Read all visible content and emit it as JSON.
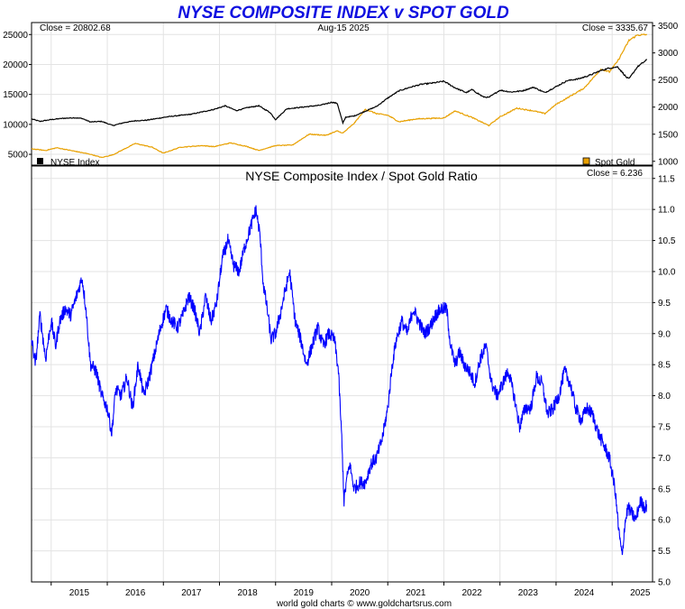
{
  "colors": {
    "title": "#1010e0",
    "nyse": "#000000",
    "gold": "#e8a000",
    "ratio": "#0000ff",
    "grid": "#e3e3e3"
  },
  "header": {
    "title": "NYSE COMPOSITE INDEX v SPOT GOLD"
  },
  "footer": {
    "credit": "world gold charts © www.goldchartsrus.com"
  },
  "chart_data": [
    {
      "type": "line",
      "panel": "top",
      "date_label": "Aug-15  2025",
      "xlim": [
        2014.65,
        2025.72
      ],
      "series": [
        {
          "name": "NYSE Index",
          "axis": "left",
          "close_label": "Close = 20802.68",
          "x": [
            2014.65,
            2014.8,
            2015.0,
            2015.2,
            2015.4,
            2015.55,
            2015.7,
            2015.9,
            2016.1,
            2016.3,
            2016.5,
            2016.7,
            2016.9,
            2017.1,
            2017.3,
            2017.5,
            2017.7,
            2017.9,
            2018.1,
            2018.3,
            2018.5,
            2018.7,
            2018.9,
            2019.0,
            2019.2,
            2019.4,
            2019.6,
            2019.8,
            2020.0,
            2020.1,
            2020.2,
            2020.25,
            2020.4,
            2020.6,
            2020.8,
            2021.0,
            2021.2,
            2021.4,
            2021.6,
            2021.8,
            2022.0,
            2022.2,
            2022.4,
            2022.5,
            2022.7,
            2022.8,
            2023.0,
            2023.2,
            2023.4,
            2023.6,
            2023.8,
            2024.0,
            2024.2,
            2024.4,
            2024.6,
            2024.8,
            2024.95,
            2025.1,
            2025.25,
            2025.3,
            2025.45,
            2025.62
          ],
          "y": [
            10900,
            10500,
            10800,
            11000,
            11100,
            11000,
            10400,
            10500,
            9800,
            10300,
            10600,
            10700,
            11000,
            11300,
            11500,
            11700,
            12100,
            12500,
            13100,
            12300,
            12800,
            13100,
            12000,
            10800,
            12600,
            12800,
            13000,
            13200,
            13700,
            13500,
            10200,
            11200,
            11400,
            12200,
            13000,
            14400,
            15600,
            16200,
            16700,
            16900,
            17200,
            16100,
            15300,
            15800,
            14600,
            14500,
            15700,
            15400,
            15600,
            16200,
            15300,
            16300,
            17300,
            17600,
            18200,
            19000,
            19400,
            19600,
            17900,
            17600,
            19600,
            20803
          ]
        },
        {
          "name": "Spot Gold",
          "axis": "right",
          "close_label": "Close = 3335.67",
          "x": [
            2014.65,
            2014.9,
            2015.1,
            2015.4,
            2015.7,
            2015.9,
            2016.1,
            2016.5,
            2016.8,
            2017.0,
            2017.3,
            2017.7,
            2017.9,
            2018.2,
            2018.5,
            2018.7,
            2019.0,
            2019.3,
            2019.6,
            2019.9,
            2020.1,
            2020.2,
            2020.4,
            2020.6,
            2020.8,
            2021.0,
            2021.2,
            2021.5,
            2021.7,
            2022.0,
            2022.2,
            2022.5,
            2022.8,
            2023.0,
            2023.3,
            2023.6,
            2023.8,
            2024.0,
            2024.2,
            2024.5,
            2024.8,
            2024.95,
            2025.1,
            2025.3,
            2025.45,
            2025.62
          ],
          "y": [
            1230,
            1200,
            1250,
            1190,
            1130,
            1070,
            1120,
            1330,
            1260,
            1150,
            1260,
            1290,
            1270,
            1340,
            1270,
            1200,
            1290,
            1300,
            1500,
            1480,
            1560,
            1520,
            1700,
            1960,
            1880,
            1850,
            1730,
            1780,
            1790,
            1800,
            1930,
            1810,
            1660,
            1820,
            1980,
            1930,
            1880,
            2050,
            2170,
            2350,
            2700,
            2650,
            2850,
            3230,
            3330,
            3336
          ]
        }
      ],
      "y_left": {
        "ticks": [
          5000,
          10000,
          15000,
          20000,
          25000
        ],
        "ylim": [
          3200,
          27000
        ]
      },
      "y_right": {
        "ticks": [
          1000,
          1500,
          2000,
          2500,
          3000,
          3500
        ],
        "ylim": [
          930,
          3560
        ]
      },
      "legend": [
        {
          "label": "NYSE Index",
          "position": "bottom-left"
        },
        {
          "label": "Spot Gold",
          "position": "bottom-right"
        }
      ]
    },
    {
      "type": "line",
      "panel": "bottom",
      "title": "NYSE Composite Index  /  Spot Gold Ratio",
      "close_label": "Close = 6.236",
      "xlim": [
        2014.65,
        2025.72
      ],
      "ylim": [
        5.0,
        11.7
      ],
      "yticks": [
        5.0,
        5.5,
        6.0,
        6.5,
        7.0,
        7.5,
        8.0,
        8.5,
        9.0,
        9.5,
        10.0,
        10.5,
        11.0,
        11.5
      ],
      "xticks": [
        "2015",
        "2016",
        "2017",
        "2018",
        "2019",
        "2020",
        "2021",
        "2022",
        "2023",
        "2024",
        "2025"
      ],
      "series": [
        {
          "name": "Ratio",
          "x": [
            2014.65,
            2014.72,
            2014.8,
            2014.9,
            2015.0,
            2015.08,
            2015.15,
            2015.25,
            2015.35,
            2015.45,
            2015.55,
            2015.62,
            2015.7,
            2015.8,
            2015.9,
            2016.0,
            2016.08,
            2016.15,
            2016.25,
            2016.35,
            2016.45,
            2016.55,
            2016.65,
            2016.75,
            2016.85,
            2016.95,
            2017.05,
            2017.15,
            2017.25,
            2017.35,
            2017.45,
            2017.55,
            2017.65,
            2017.75,
            2017.85,
            2017.95,
            2018.05,
            2018.15,
            2018.25,
            2018.35,
            2018.45,
            2018.55,
            2018.65,
            2018.72,
            2018.78,
            2018.85,
            2018.92,
            2019.0,
            2019.08,
            2019.15,
            2019.25,
            2019.35,
            2019.45,
            2019.55,
            2019.65,
            2019.75,
            2019.85,
            2019.95,
            2020.05,
            2020.12,
            2020.18,
            2020.22,
            2020.26,
            2020.32,
            2020.4,
            2020.5,
            2020.6,
            2020.7,
            2020.8,
            2020.9,
            2021.0,
            2021.08,
            2021.15,
            2021.25,
            2021.35,
            2021.45,
            2021.55,
            2021.65,
            2021.75,
            2021.85,
            2021.95,
            2022.05,
            2022.12,
            2022.2,
            2022.28,
            2022.36,
            2022.45,
            2022.55,
            2022.65,
            2022.75,
            2022.85,
            2022.95,
            2023.05,
            2023.15,
            2023.25,
            2023.35,
            2023.45,
            2023.55,
            2023.65,
            2023.75,
            2023.85,
            2023.95,
            2024.05,
            2024.15,
            2024.25,
            2024.35,
            2024.45,
            2024.55,
            2024.65,
            2024.75,
            2024.85,
            2024.95,
            2025.05,
            2025.12,
            2025.18,
            2025.22,
            2025.28,
            2025.35,
            2025.42,
            2025.5,
            2025.58,
            2025.62
          ],
          "y": [
            8.9,
            8.5,
            9.3,
            8.6,
            9.2,
            8.8,
            9.2,
            9.4,
            9.3,
            9.6,
            9.9,
            9.4,
            8.5,
            8.4,
            8.0,
            7.8,
            7.4,
            8.1,
            8.0,
            8.3,
            7.8,
            8.5,
            8.0,
            8.3,
            8.7,
            9.1,
            9.4,
            9.2,
            9.1,
            9.3,
            9.6,
            9.4,
            9.0,
            9.6,
            9.2,
            9.5,
            10.2,
            10.5,
            10.1,
            10.0,
            10.4,
            10.7,
            11.0,
            10.6,
            9.8,
            9.4,
            8.9,
            9.0,
            9.3,
            9.6,
            10.0,
            9.2,
            8.9,
            8.5,
            8.8,
            9.1,
            8.8,
            9.0,
            8.9,
            8.4,
            7.3,
            6.3,
            6.6,
            6.9,
            6.5,
            6.6,
            6.6,
            6.9,
            7.0,
            7.3,
            7.8,
            8.5,
            8.9,
            9.2,
            9.0,
            9.4,
            9.2,
            9.0,
            9.1,
            9.3,
            9.4,
            9.4,
            8.8,
            8.5,
            8.7,
            8.5,
            8.4,
            8.2,
            8.6,
            8.8,
            8.2,
            8.0,
            8.2,
            8.4,
            8.0,
            7.5,
            7.8,
            7.8,
            8.3,
            8.2,
            7.7,
            7.8,
            8.0,
            8.4,
            8.2,
            7.8,
            7.6,
            7.8,
            7.7,
            7.4,
            7.2,
            7.0,
            6.5,
            5.8,
            5.4,
            5.9,
            6.2,
            6.1,
            6.0,
            6.3,
            6.2,
            6.24
          ]
        }
      ]
    }
  ]
}
